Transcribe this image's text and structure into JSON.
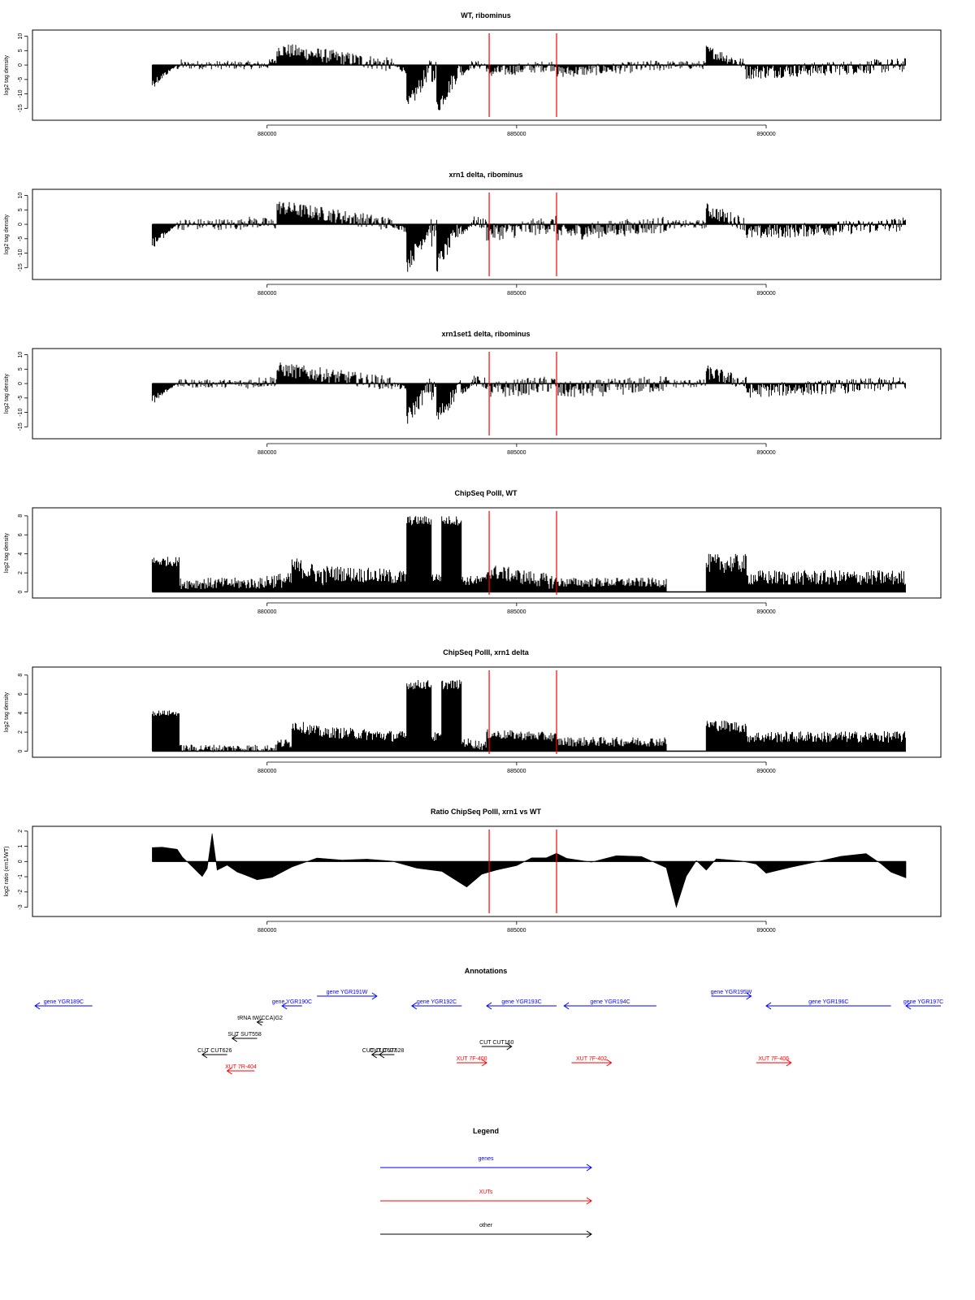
{
  "colors": {
    "gene": "#0000ff",
    "xut": "#ff0000",
    "other": "#000000",
    "marker": "#ff0000",
    "bar": "#000000"
  },
  "chart_data": [
    {
      "id": "wt",
      "type": "bar",
      "title": "WT, ribominus",
      "ylabel": "log2 tag density",
      "ylim": [
        -18,
        11
      ],
      "yticks": [
        "10",
        "5",
        "0",
        "-5",
        "-10",
        "-15"
      ],
      "ytick_values": [
        10,
        5,
        0,
        -5,
        -10,
        -15
      ],
      "xlim": [
        875300,
        893500
      ],
      "xticks": [
        "880000",
        "885000",
        "890000"
      ],
      "xtick_values": [
        880000,
        885000,
        890000
      ],
      "markers_x": [
        884450,
        885800
      ],
      "segments": [
        [
          877700,
          878200,
          -7.5,
          0,
          -2
        ],
        [
          878200,
          878300,
          0,
          0,
          2
        ],
        [
          878300,
          880000,
          0,
          0,
          1.5
        ],
        [
          880000,
          880200,
          0,
          2,
          1.5
        ],
        [
          880200,
          882500,
          5.5,
          0,
          2.5
        ],
        [
          882500,
          882800,
          0,
          -2,
          1
        ],
        [
          882800,
          883300,
          -15,
          0,
          3
        ],
        [
          883300,
          883400,
          -5,
          0,
          3
        ],
        [
          883400,
          883900,
          -15,
          0,
          3
        ],
        [
          883900,
          884100,
          -3,
          0,
          1
        ],
        [
          884100,
          884400,
          0,
          0,
          1.5
        ],
        [
          884400,
          885800,
          -2.5,
          0,
          2
        ],
        [
          885800,
          888000,
          -2.5,
          0,
          2
        ],
        [
          888000,
          888800,
          0,
          0,
          1.5
        ],
        [
          888800,
          889600,
          5,
          0,
          2
        ],
        [
          889600,
          892800,
          -2.5,
          0,
          2.5
        ]
      ]
    },
    {
      "id": "xrn1",
      "type": "bar",
      "title": "xrn1 delta, ribominus",
      "ylabel": "log2 tag density",
      "ylim": [
        -18,
        11
      ],
      "yticks": [
        "10",
        "5",
        "0",
        "-5",
        "-10",
        "-15"
      ],
      "ytick_values": [
        10,
        5,
        0,
        -5,
        -10,
        -15
      ],
      "xlim": [
        875300,
        893500
      ],
      "xticks": [
        "880000",
        "885000",
        "890000"
      ],
      "xtick_values": [
        880000,
        885000,
        890000
      ],
      "markers_x": [
        884450,
        885800
      ],
      "segments": [
        [
          877700,
          878200,
          -8,
          0,
          -2
        ],
        [
          878200,
          879500,
          0,
          0,
          2
        ],
        [
          879500,
          880200,
          1,
          0,
          2
        ],
        [
          880200,
          882500,
          6,
          0,
          2.5
        ],
        [
          882500,
          882800,
          0,
          -2,
          1
        ],
        [
          882800,
          883300,
          -14,
          0,
          3
        ],
        [
          883300,
          883400,
          -5,
          0,
          3
        ],
        [
          883400,
          883900,
          -14,
          0,
          3
        ],
        [
          883900,
          884100,
          -3,
          0,
          1
        ],
        [
          884100,
          884400,
          1,
          0,
          2
        ],
        [
          884400,
          885800,
          -3,
          0,
          3
        ],
        [
          885800,
          888000,
          -3,
          0,
          3
        ],
        [
          888000,
          888800,
          0,
          0,
          1.5
        ],
        [
          888800,
          889600,
          5,
          0,
          2.5
        ],
        [
          889600,
          892800,
          -3,
          0,
          2.5
        ]
      ]
    },
    {
      "id": "xrn1set1",
      "type": "bar",
      "title": "xrn1set1 delta, ribominus",
      "ylabel": "log2 tag density",
      "ylim": [
        -18,
        11
      ],
      "yticks": [
        "10",
        "5",
        "0",
        "-5",
        "-10",
        "-15"
      ],
      "ytick_values": [
        10,
        5,
        0,
        -5,
        -10,
        -15
      ],
      "xlim": [
        875300,
        893500
      ],
      "xticks": [
        "880000",
        "885000",
        "890000"
      ],
      "xtick_values": [
        880000,
        885000,
        890000
      ],
      "markers_x": [
        884450,
        885800
      ],
      "segments": [
        [
          877700,
          878200,
          -7,
          0,
          -2
        ],
        [
          878200,
          879500,
          0,
          0,
          1.5
        ],
        [
          879500,
          880200,
          0,
          1,
          2
        ],
        [
          880200,
          882500,
          5,
          0,
          2.5
        ],
        [
          882500,
          882800,
          0,
          -2,
          1
        ],
        [
          882800,
          883300,
          -12,
          0,
          3
        ],
        [
          883300,
          883400,
          -4,
          0,
          3
        ],
        [
          883400,
          883900,
          -12,
          0,
          3
        ],
        [
          883900,
          884100,
          -3,
          0,
          1
        ],
        [
          884100,
          884400,
          1,
          0,
          2
        ],
        [
          884400,
          885800,
          -2.5,
          0,
          3
        ],
        [
          885800,
          888000,
          -2.5,
          0,
          3
        ],
        [
          888000,
          888800,
          0,
          0,
          1.5
        ],
        [
          888800,
          889600,
          4,
          0,
          2.5
        ],
        [
          889600,
          892800,
          -2.5,
          0,
          2.5
        ]
      ]
    },
    {
      "id": "chip_wt",
      "type": "bar",
      "title": "ChipSeq PolII, WT",
      "ylabel": "log2 tag density",
      "ylim": [
        -0.3,
        8.5
      ],
      "yticks": [
        "0",
        "2",
        "4",
        "6",
        "8"
      ],
      "ytick_values": [
        0,
        2,
        4,
        6,
        8
      ],
      "xlim": [
        875300,
        893500
      ],
      "xticks": [
        "880000",
        "885000",
        "890000"
      ],
      "xtick_values": [
        880000,
        885000,
        890000
      ],
      "markers_x": [
        884450,
        885800
      ],
      "segments": [
        [
          877700,
          878250,
          3.2,
          3.2,
          0.5
        ],
        [
          878250,
          880000,
          0.9,
          0.9,
          0.6
        ],
        [
          880000,
          880500,
          1.2,
          1.2,
          0.8
        ],
        [
          880500,
          881200,
          2.8,
          1.5,
          1
        ],
        [
          881200,
          882800,
          2,
          1.5,
          0.8
        ],
        [
          882800,
          883300,
          7.5,
          7.5,
          0.5
        ],
        [
          883300,
          883500,
          1.5,
          1.5,
          0.5
        ],
        [
          883500,
          883900,
          7.5,
          7.5,
          0.5
        ],
        [
          883900,
          884400,
          1.2,
          1.2,
          0.5
        ],
        [
          884400,
          885800,
          2.2,
          1,
          0.8
        ],
        [
          885800,
          888000,
          1,
          1,
          0.5
        ],
        [
          888000,
          888800,
          0,
          0,
          0
        ],
        [
          888800,
          889600,
          3,
          3,
          1
        ],
        [
          889600,
          892800,
          1.5,
          1.5,
          0.8
        ]
      ]
    },
    {
      "id": "chip_xrn1",
      "type": "bar",
      "title": "ChipSeq PolII, xrn1 delta",
      "ylabel": "log2 tag density",
      "ylim": [
        -0.3,
        8.5
      ],
      "yticks": [
        "0",
        "2",
        "4",
        "6",
        "8"
      ],
      "ytick_values": [
        0,
        2,
        4,
        6,
        8
      ],
      "xlim": [
        875300,
        893500
      ],
      "xticks": [
        "880000",
        "885000",
        "890000"
      ],
      "xtick_values": [
        880000,
        885000,
        890000
      ],
      "markers_x": [
        884450,
        885800
      ],
      "segments": [
        [
          877700,
          878250,
          4,
          4,
          0.3
        ],
        [
          878250,
          880200,
          0.3,
          0.3,
          0.4
        ],
        [
          880200,
          880500,
          0.8,
          0.8,
          0.5
        ],
        [
          880500,
          881200,
          2.8,
          1.8,
          0.6
        ],
        [
          881200,
          882800,
          2,
          1.5,
          0.6
        ],
        [
          882800,
          883300,
          7,
          7,
          0.5
        ],
        [
          883300,
          883500,
          1.5,
          1.5,
          0.5
        ],
        [
          883500,
          883900,
          7,
          7,
          0.5
        ],
        [
          883900,
          884400,
          1,
          0.5,
          0.5
        ],
        [
          884400,
          885800,
          1.8,
          1.5,
          0.5
        ],
        [
          885800,
          888000,
          1,
          1,
          0.5
        ],
        [
          888000,
          888800,
          0,
          0,
          0
        ],
        [
          888800,
          889600,
          2.8,
          2.5,
          0.6
        ],
        [
          889600,
          892800,
          1.5,
          1.5,
          0.6
        ]
      ]
    },
    {
      "id": "ratio",
      "type": "area",
      "title": "Ratio ChipSeq PolII, xrn1 vs WT",
      "ylabel": "log2 ratio (xrn1/WT)",
      "ylim": [
        -3.4,
        2.1
      ],
      "yticks": [
        "2",
        "1",
        "0",
        "-1",
        "-2",
        "-3"
      ],
      "ytick_values": [
        2,
        1,
        0,
        -1,
        -2,
        -3
      ],
      "xlim": [
        875300,
        893500
      ],
      "xticks": [
        "880000",
        "885000",
        "890000"
      ],
      "xtick_values": [
        880000,
        885000,
        890000
      ],
      "markers_x": [
        884450,
        885800
      ],
      "x": [
        877700,
        877900,
        878200,
        878300,
        878500,
        878700,
        878800,
        878900,
        879000,
        879200,
        879400,
        879600,
        879800,
        880100,
        880500,
        881000,
        881500,
        882000,
        882500,
        883000,
        883500,
        884000,
        884300,
        884600,
        885000,
        885300,
        885600,
        885800,
        886000,
        886500,
        887000,
        887500,
        888000,
        888200,
        888400,
        888600,
        888800,
        889000,
        889500,
        889800,
        890000,
        890500,
        891000,
        891500,
        892000,
        892300,
        892500,
        892800
      ],
      "y": [
        0.9,
        1.0,
        0.8,
        0.3,
        -0.3,
        -1.0,
        -0.4,
        1.8,
        -0.5,
        -0.2,
        -0.7,
        -1.0,
        -1.2,
        -1.0,
        -0.3,
        0.3,
        0.1,
        0.1,
        0.0,
        -0.5,
        -0.6,
        -1.7,
        -0.9,
        -0.5,
        -0.3,
        0.2,
        0.3,
        0.5,
        0.2,
        -0.1,
        0.4,
        0.3,
        -0.4,
        -3.0,
        -1.0,
        0.1,
        -0.6,
        0.2,
        0.1,
        -0.2,
        -0.8,
        -0.4,
        0.0,
        0.3,
        0.5,
        -0.2,
        -0.7,
        -1.0
      ]
    }
  ],
  "annotations": {
    "title": "Annotations",
    "xlim": [
      875300,
      893500
    ],
    "features": [
      {
        "label": "gene YGR189C",
        "start": 875350,
        "end": 876500,
        "strand": "-",
        "kind": "gene",
        "row": 0
      },
      {
        "label": "gene YGR190C",
        "start": 880300,
        "end": 880700,
        "strand": "-",
        "kind": "gene",
        "row": 0
      },
      {
        "label": "gene YGR191W",
        "start": 881000,
        "end": 882200,
        "strand": "+",
        "kind": "gene",
        "row": -0.6
      },
      {
        "label": "gene YGR192C",
        "start": 882900,
        "end": 883900,
        "strand": "-",
        "kind": "gene",
        "row": 0
      },
      {
        "label": "gene YGR193C",
        "start": 884400,
        "end": 885800,
        "strand": "-",
        "kind": "gene",
        "row": 0
      },
      {
        "label": "gene YGR194C",
        "start": 885950,
        "end": 887800,
        "strand": "-",
        "kind": "gene",
        "row": 0
      },
      {
        "label": "gene YGR195W",
        "start": 888900,
        "end": 889700,
        "strand": "+",
        "kind": "gene",
        "row": -0.6
      },
      {
        "label": "gene YGR196C",
        "start": 890000,
        "end": 892500,
        "strand": "-",
        "kind": "gene",
        "row": 0
      },
      {
        "label": "gene YGR197C",
        "start": 892800,
        "end": 893500,
        "strand": "-",
        "kind": "gene",
        "row": 0
      },
      {
        "label": "tRNA tW(CCA)G2",
        "start": 879800,
        "end": 879920,
        "strand": "-",
        "kind": "other",
        "row": 1
      },
      {
        "label": "SUT SUT558",
        "start": 879300,
        "end": 879800,
        "strand": "-",
        "kind": "other",
        "row": 2
      },
      {
        "label": "CUT CUT626",
        "start": 878700,
        "end": 879200,
        "strand": "-",
        "kind": "other",
        "row": 3
      },
      {
        "label": "CUT CUT627",
        "start": 882100,
        "end": 882400,
        "strand": "-",
        "kind": "other",
        "row": 3
      },
      {
        "label": "CUT CUT628",
        "start": 882250,
        "end": 882550,
        "strand": "-",
        "kind": "other",
        "row": 3
      },
      {
        "label": "CUT CUT160",
        "start": 884300,
        "end": 884900,
        "strand": "+",
        "kind": "other",
        "row": 2.5
      },
      {
        "label": "XUT 7R-404",
        "start": 879200,
        "end": 879750,
        "strand": "-",
        "kind": "xut",
        "row": 4
      },
      {
        "label": "XUT 7F-400",
        "start": 883800,
        "end": 884400,
        "strand": "+",
        "kind": "xut",
        "row": 3.5
      },
      {
        "label": "XUT 7F-402",
        "start": 886100,
        "end": 886900,
        "strand": "+",
        "kind": "xut",
        "row": 3.5
      },
      {
        "label": "XUT 7F-406",
        "start": 889800,
        "end": 890500,
        "strand": "+",
        "kind": "xut",
        "row": 3.5
      }
    ]
  },
  "legend": {
    "title": "Legend",
    "items": [
      {
        "label": "genes",
        "kind": "gene"
      },
      {
        "label": "XUTs",
        "kind": "xut"
      },
      {
        "label": "other",
        "kind": "other"
      }
    ]
  }
}
